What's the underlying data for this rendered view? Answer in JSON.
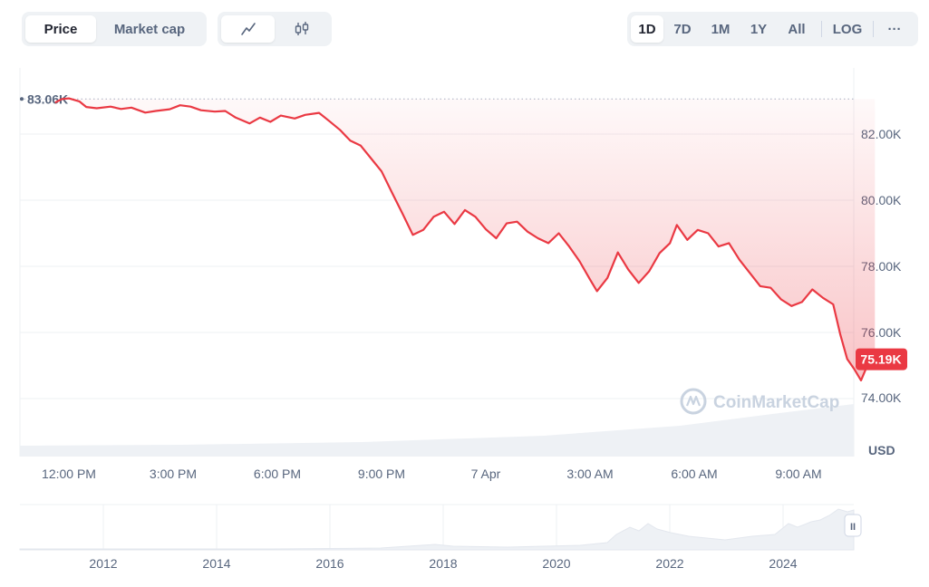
{
  "toolbar": {
    "tabs": [
      {
        "label": "Price",
        "active": true
      },
      {
        "label": "Market cap",
        "active": false
      }
    ],
    "chart_types": [
      {
        "icon": "line-chart-icon",
        "active": true
      },
      {
        "icon": "candlestick-icon",
        "active": false
      }
    ],
    "ranges": [
      "1D",
      "7D",
      "1M",
      "1Y",
      "All"
    ],
    "active_range": "1D",
    "log_label": "LOG",
    "more_label": "···"
  },
  "chart_data": {
    "type": "line",
    "currency": "USD",
    "high_label": "83.06K",
    "high_value": 83060,
    "current_label": "75.19K",
    "current_value": 75190,
    "y_ticks": [
      {
        "label": "82.00K",
        "value": 82000
      },
      {
        "label": "80.00K",
        "value": 80000
      },
      {
        "label": "78.00K",
        "value": 78000
      },
      {
        "label": "76.00K",
        "value": 76000
      },
      {
        "label": "74.00K",
        "value": 74000
      }
    ],
    "y_unit_label": "USD",
    "ylim": [
      73000,
      84000
    ],
    "x_ticks": [
      "12:00 PM",
      "3:00 PM",
      "6:00 PM",
      "9:00 PM",
      "7 Apr",
      "3:00 AM",
      "6:00 AM",
      "9:00 AM"
    ],
    "x_hours": [
      0,
      3,
      6,
      9,
      12,
      15,
      18,
      21
    ],
    "xlim_hours": [
      -0.6,
      23.3
    ],
    "grid": true,
    "colors": {
      "line": "#ea3943",
      "fill": "#ea3943",
      "volume": "#eef1f5",
      "badge": "#ea3943"
    },
    "series": [
      {
        "points": [
          [
            -0.4,
            82950
          ],
          [
            -0.2,
            83060
          ],
          [
            0.0,
            83080
          ],
          [
            0.3,
            82990
          ],
          [
            0.5,
            82820
          ],
          [
            0.8,
            82780
          ],
          [
            1.2,
            82830
          ],
          [
            1.5,
            82760
          ],
          [
            1.8,
            82800
          ],
          [
            2.2,
            82650
          ],
          [
            2.5,
            82700
          ],
          [
            2.9,
            82750
          ],
          [
            3.2,
            82870
          ],
          [
            3.5,
            82830
          ],
          [
            3.8,
            82720
          ],
          [
            4.2,
            82680
          ],
          [
            4.5,
            82700
          ],
          [
            4.8,
            82500
          ],
          [
            5.2,
            82320
          ],
          [
            5.5,
            82500
          ],
          [
            5.8,
            82370
          ],
          [
            6.1,
            82560
          ],
          [
            6.5,
            82470
          ],
          [
            6.8,
            82580
          ],
          [
            7.2,
            82640
          ],
          [
            7.5,
            82390
          ],
          [
            7.8,
            82130
          ],
          [
            8.1,
            81800
          ],
          [
            8.4,
            81650
          ],
          [
            8.7,
            81260
          ],
          [
            9.0,
            80870
          ],
          [
            9.3,
            80230
          ],
          [
            9.6,
            79600
          ],
          [
            9.9,
            78950
          ],
          [
            10.2,
            79100
          ],
          [
            10.5,
            79500
          ],
          [
            10.8,
            79650
          ],
          [
            11.1,
            79280
          ],
          [
            11.4,
            79700
          ],
          [
            11.7,
            79500
          ],
          [
            12.0,
            79120
          ],
          [
            12.3,
            78850
          ],
          [
            12.6,
            79300
          ],
          [
            12.9,
            79350
          ],
          [
            13.2,
            79050
          ],
          [
            13.5,
            78850
          ],
          [
            13.8,
            78700
          ],
          [
            14.1,
            79000
          ],
          [
            14.4,
            78600
          ],
          [
            14.7,
            78150
          ],
          [
            15.0,
            77600
          ],
          [
            15.2,
            77250
          ],
          [
            15.5,
            77650
          ],
          [
            15.8,
            78420
          ],
          [
            16.1,
            77900
          ],
          [
            16.4,
            77500
          ],
          [
            16.7,
            77850
          ],
          [
            17.0,
            78400
          ],
          [
            17.3,
            78700
          ],
          [
            17.5,
            79250
          ],
          [
            17.8,
            78800
          ],
          [
            18.1,
            79100
          ],
          [
            18.4,
            79000
          ],
          [
            18.7,
            78600
          ],
          [
            19.0,
            78700
          ],
          [
            19.3,
            78200
          ],
          [
            19.6,
            77800
          ],
          [
            19.9,
            77400
          ],
          [
            20.2,
            77350
          ],
          [
            20.5,
            77000
          ],
          [
            20.8,
            76800
          ],
          [
            21.1,
            76920
          ],
          [
            21.4,
            77300
          ],
          [
            21.7,
            77050
          ],
          [
            22.0,
            76850
          ],
          [
            22.2,
            75950
          ],
          [
            22.4,
            75200
          ],
          [
            22.6,
            74900
          ],
          [
            22.8,
            74550
          ],
          [
            23.0,
            75050
          ],
          [
            23.2,
            75190
          ]
        ]
      }
    ]
  },
  "navigator": {
    "years": [
      "2012",
      "2014",
      "2016",
      "2018",
      "2020",
      "2022",
      "2024"
    ],
    "handle_label": "II"
  },
  "watermark": "CoinMarketCap"
}
